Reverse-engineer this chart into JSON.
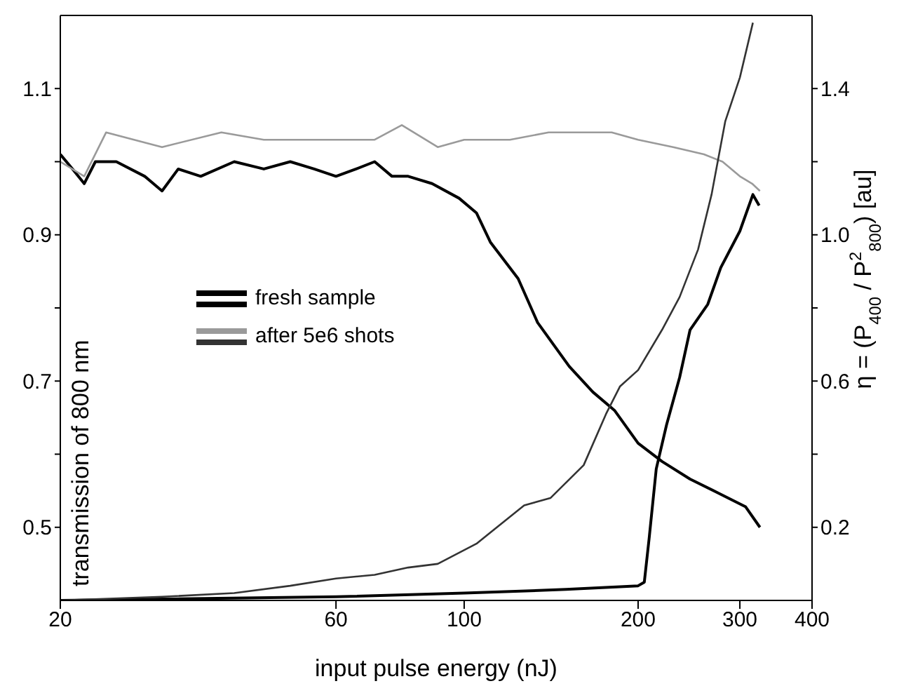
{
  "chart_data": {
    "type": "line",
    "xlabel": "input pulse energy (nJ)",
    "ylabel": "transmission of 800 nm",
    "y2label": "η = (P$_{400}$ / P$^{2}$$_{800}$) [au]",
    "log": "x",
    "xlim": [
      20,
      400
    ],
    "xticks": [
      20,
      60,
      100,
      200,
      300,
      400
    ],
    "ylim": [
      0.4,
      1.2
    ],
    "yticks": [
      0.5,
      {
        "value": 0.6,
        "label": null
      },
      0.7,
      {
        "value": 0.8,
        "label": null
      },
      0.9,
      {
        "value": 1.0,
        "label": null
      },
      1.1
    ],
    "y2lim": [
      0,
      1.6
    ],
    "y2ticks": [
      0.2,
      {
        "value": 0.4,
        "label": null
      },
      0.6,
      {
        "value": 0.8,
        "label": null
      },
      {
        "value": 1.0,
        "label": "1.0"
      },
      {
        "value": 1.2,
        "label": null
      },
      1.4
    ],
    "grid": false,
    "legend": "left",
    "marker": "none",
    "line_style": "solid",
    "series": [
      {
        "name": "fresh sample",
        "color": "#000000",
        "x": [
          20,
          21,
          22,
          23,
          25,
          28,
          30,
          32,
          35,
          40,
          45,
          50,
          55,
          60,
          65,
          70,
          75,
          80,
          88,
          98,
          105,
          111,
          124,
          134,
          152,
          167,
          182,
          200,
          220,
          246,
          275,
          307,
          325
        ],
        "values": [
          1.01,
          0.99,
          0.97,
          1.0,
          1.0,
          0.98,
          0.96,
          0.99,
          0.98,
          1.0,
          0.99,
          1.0,
          0.99,
          0.98,
          0.99,
          1.0,
          0.98,
          0.98,
          0.97,
          0.95,
          0.93,
          0.89,
          0.84,
          0.78,
          0.72,
          0.685,
          0.66,
          0.615,
          0.59,
          0.566,
          0.547,
          0.528,
          0.5
        ]
      },
      {
        "color": "#000000",
        "axis": "y2",
        "x": [
          20,
          60,
          100,
          150,
          200,
          205,
          209,
          215,
          224,
          236,
          246,
          264,
          278,
          300,
          316,
          324
        ],
        "values": [
          0.0,
          0.01,
          0.02,
          0.03,
          0.04,
          0.05,
          0.17,
          0.36,
          0.48,
          0.61,
          0.74,
          0.81,
          0.91,
          1.01,
          1.11,
          1.08
        ]
      },
      {
        "name": "after 5e6 shots",
        "color": "#9a9a9a",
        "x": [
          20,
          22,
          24,
          30,
          38,
          45,
          55,
          70,
          78,
          90,
          100,
          120,
          140,
          160,
          180,
          200,
          230,
          260,
          280,
          300,
          315,
          325
        ],
        "values": [
          1.0,
          0.98,
          1.04,
          1.02,
          1.04,
          1.03,
          1.03,
          1.03,
          1.05,
          1.02,
          1.03,
          1.03,
          1.04,
          1.04,
          1.04,
          1.03,
          1.02,
          1.01,
          1.0,
          0.98,
          0.97,
          0.96
        ]
      },
      {
        "color": "#333333",
        "axis": "y2",
        "x": [
          20,
          30,
          40,
          50,
          60,
          70,
          80,
          90,
          105,
          127,
          141,
          161,
          176,
          186,
          200,
          220,
          236,
          254,
          268,
          283,
          300,
          316
        ],
        "values": [
          0.0,
          0.01,
          0.02,
          0.04,
          0.06,
          0.07,
          0.09,
          0.1,
          0.155,
          0.26,
          0.28,
          0.37,
          0.51,
          0.585,
          0.63,
          0.74,
          0.83,
          0.96,
          1.11,
          1.31,
          1.43,
          1.58
        ]
      }
    ]
  }
}
